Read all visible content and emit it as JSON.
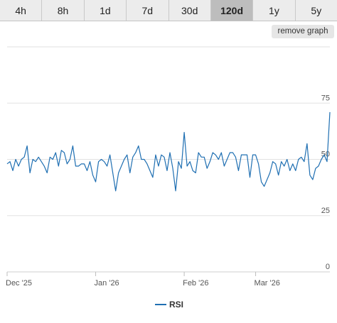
{
  "tabs": [
    {
      "label": "4h",
      "active": false
    },
    {
      "label": "8h",
      "active": false
    },
    {
      "label": "1d",
      "active": false
    },
    {
      "label": "7d",
      "active": false
    },
    {
      "label": "30d",
      "active": false
    },
    {
      "label": "120d",
      "active": true
    },
    {
      "label": "1y",
      "active": false
    },
    {
      "label": "5y",
      "active": false
    }
  ],
  "remove_graph_label": "remove graph",
  "chart_data": {
    "type": "line",
    "series": [
      {
        "name": "RSI",
        "color": "#1f6fb2",
        "values": [
          48,
          49,
          45,
          50,
          47,
          50,
          51,
          56,
          44,
          50,
          49,
          51,
          49,
          47,
          44,
          51,
          50,
          53,
          47,
          54,
          53,
          48,
          50,
          56,
          47,
          47,
          48,
          48,
          45,
          49,
          43,
          40,
          49,
          50,
          49,
          47,
          52,
          44,
          36,
          44,
          47,
          50,
          52,
          44,
          51,
          53,
          56,
          50,
          50,
          48,
          45,
          42,
          52,
          47,
          52,
          51,
          45,
          53,
          46,
          36,
          49,
          46,
          62,
          47,
          49,
          45,
          44,
          53,
          51,
          51,
          46,
          49,
          53,
          52,
          50,
          53,
          47,
          50,
          53,
          53,
          51,
          45,
          52,
          52,
          52,
          42,
          52,
          52,
          48,
          40,
          38,
          41,
          44,
          49,
          48,
          43,
          49,
          47,
          50,
          45,
          48,
          45,
          50,
          51,
          49,
          57,
          43,
          41,
          46,
          47,
          50,
          52,
          49,
          71
        ]
      }
    ],
    "y_ticks": [
      "0",
      "25",
      "50",
      "75"
    ],
    "ylim": [
      0,
      100
    ],
    "x_ticks": [
      {
        "label": "Dec '25",
        "index": 0
      },
      {
        "label": "Jan '26",
        "index": 31
      },
      {
        "label": "Feb '26",
        "index": 62
      },
      {
        "label": "Mar '26",
        "index": 87
      }
    ],
    "legend": "bottom",
    "grid": true
  }
}
